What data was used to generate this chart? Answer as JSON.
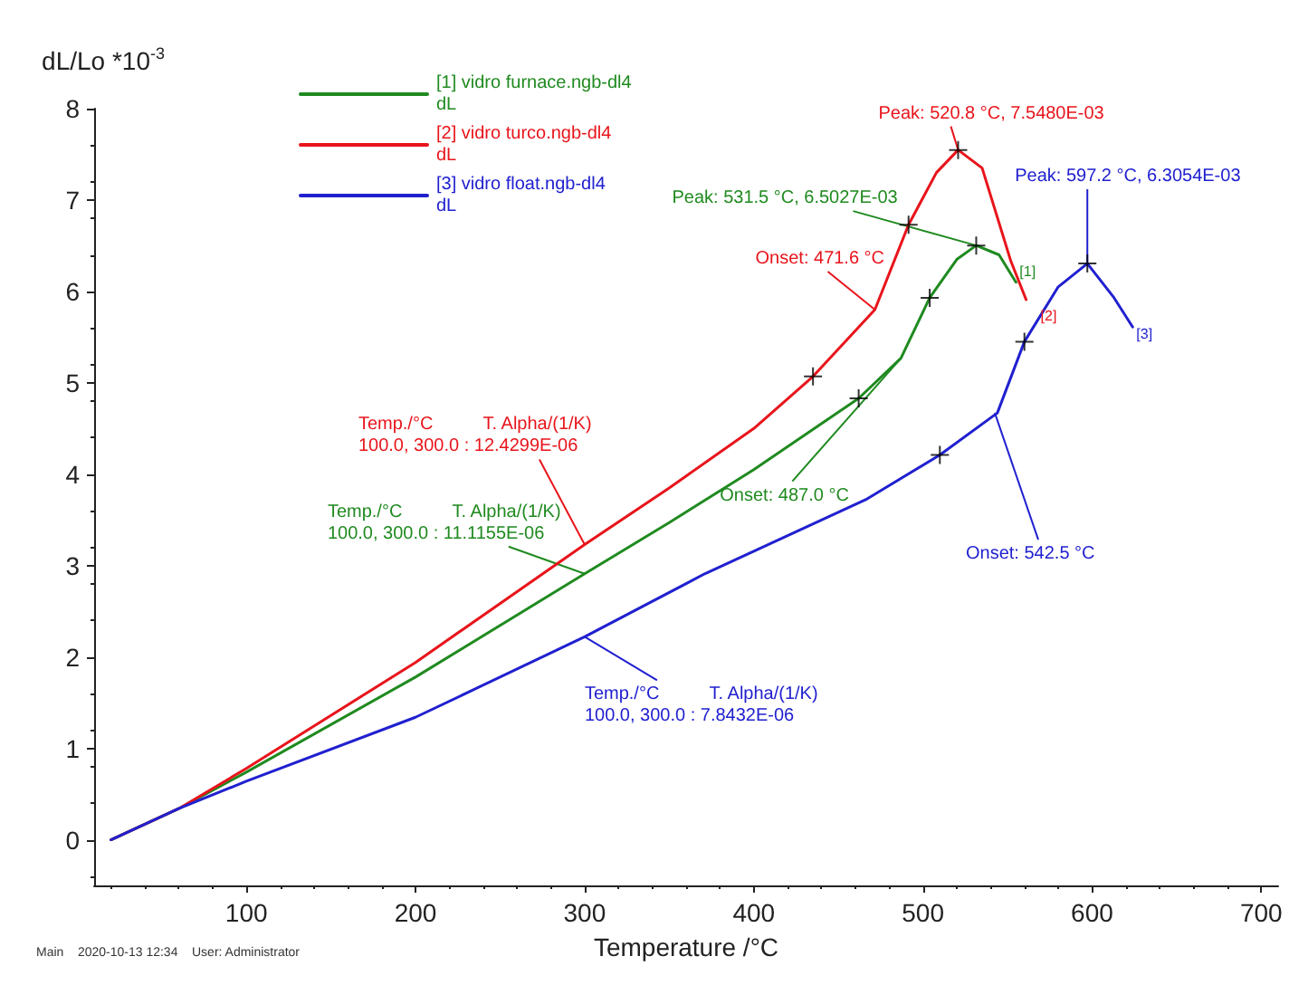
{
  "chart_data": {
    "type": "line",
    "xlabel": "Temperature /°C",
    "ylabel": "dL/Lo *10$^{-3}$",
    "xlim": [
      10,
      710
    ],
    "xticks": [
      100,
      200,
      300,
      400,
      500,
      600,
      700
    ],
    "ylim": [
      -0.5,
      8
    ],
    "yticks": [
      0,
      1,
      2,
      3,
      4,
      5,
      6,
      7,
      8
    ],
    "grid": false,
    "legend": "top left",
    "marker": "none",
    "line_style": "solid",
    "series": [
      {
        "name": "[1] vidro furnace.ngb-dl4\ndL",
        "color": "#1f8a1f",
        "x": [
          20,
          60,
          100,
          200,
          300,
          350,
          400,
          462,
          487,
          504,
          520,
          531.5,
          545,
          555
        ],
        "values": [
          0,
          0.34,
          0.74,
          1.78,
          2.91,
          3.47,
          4.05,
          4.83,
          5.27,
          5.93,
          6.35,
          6.5027,
          6.4,
          6.1
        ]
      },
      {
        "name": "[2] vidro turco.ngb-dl4\ndL",
        "color": "#e8141b",
        "x": [
          20,
          60,
          100,
          200,
          300,
          350,
          400,
          435,
          471.6,
          491.5,
          508,
          520.8,
          535,
          552,
          561
        ],
        "values": [
          0,
          0.34,
          0.78,
          1.94,
          3.23,
          3.85,
          4.5,
          5.07,
          5.8,
          6.73,
          7.3,
          7.548,
          7.35,
          6.33,
          5.91
        ]
      },
      {
        "name": "[3] vidro float.ngb-dl4\ndL",
        "color": "#2020d0",
        "x": [
          20,
          60,
          100,
          200,
          300,
          371,
          467,
          510,
          544,
          560,
          580,
          597.2,
          613,
          624
        ],
        "values": [
          0,
          0.34,
          0.64,
          1.34,
          2.22,
          2.91,
          3.73,
          4.21,
          4.67,
          5.45,
          6.05,
          6.3054,
          5.93,
          5.61
        ]
      },
      {
        "type": "scatter",
        "marker": "cross",
        "color": "#000000",
        "x": [
          435,
          491.5,
          520.8,
          462,
          504,
          531.5,
          510,
          560,
          597.2
        ],
        "values": [
          5.07,
          6.73,
          7.548,
          4.83,
          5.93,
          6.5027,
          4.21,
          5.45,
          6.3054
        ]
      }
    ],
    "annotations": [
      {
        "text": "Peak: 520.8 °C, 7.5480E-03",
        "x": 520.8,
        "y": 7.548
      },
      {
        "text": "Peak: 531.5 °C, 6.5027E-03",
        "x": 531.5,
        "y": 6.5027
      },
      {
        "text": "Peak: 597.2 °C, 6.3054E-03",
        "x": 597.2,
        "y": 6.3054
      },
      {
        "text": "Onset: 471.6 °C",
        "x": 471.6,
        "y": 5.8
      },
      {
        "text": "Onset: 487.0 °C",
        "x": 487.0,
        "y": 5.27
      },
      {
        "text": "Onset: 542.5 °C",
        "x": 542.5,
        "y": 4.67
      },
      {
        "text": "Temp./°C          T. Alpha/(1/K)\n100.0, 300.0 : 12.4299E-06",
        "x": 300,
        "y": 3.23
      },
      {
        "text": "Temp./°C          T. Alpha/(1/K)\n100.0, 300.0 : 11.1155E-06",
        "x": 300,
        "y": 2.91
      },
      {
        "text": "Temp./°C          T. Alpha/(1/K)\n100.0, 300.0 : 7.8432E-06",
        "x": 300,
        "y": 2.22
      },
      {
        "text": "[1]",
        "x": 555,
        "y": 6.1
      },
      {
        "text": "[2]",
        "x": 561,
        "y": 5.91
      },
      {
        "text": "[3]",
        "x": 624,
        "y": 5.61
      },
      "Main    2020-10-13 12:34    User: Administrator"
    ]
  }
}
